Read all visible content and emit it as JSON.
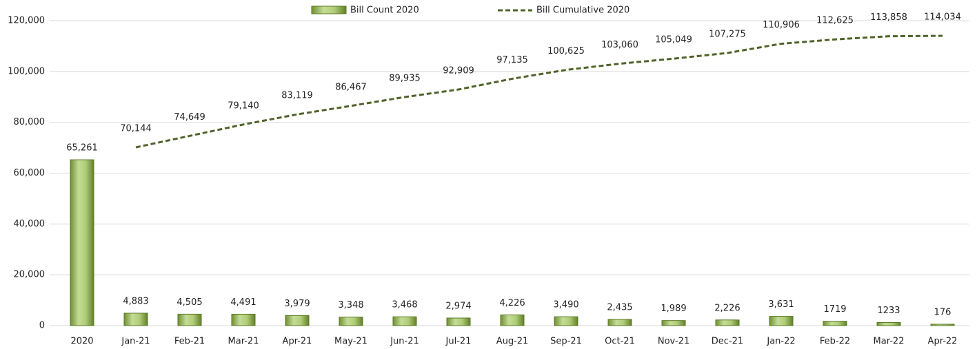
{
  "chart_data": {
    "type": "bar",
    "categories": [
      "2020",
      "Jan-21",
      "Feb-21",
      "Mar-21",
      "Apr-21",
      "May-21",
      "Jun-21",
      "Jul-21",
      "Aug-21",
      "Sep-21",
      "Oct-21",
      "Nov-21",
      "Dec-21",
      "Jan-22",
      "Feb-22",
      "Mar-22",
      "Apr-22"
    ],
    "series": [
      {
        "name": "Bill Count 2020",
        "type": "bar",
        "color": "#9bbb59",
        "values": [
          65261,
          4883,
          4505,
          4491,
          3979,
          3348,
          3468,
          2974,
          4226,
          3490,
          2435,
          1989,
          2226,
          3631,
          1719,
          1233,
          176
        ],
        "value_labels": [
          "65,261",
          "4,883",
          "4,505",
          "4,491",
          "3,979",
          "3,348",
          "3,468",
          "2,974",
          "4,226",
          "3,490",
          "2,435",
          "1,989",
          "2,226",
          "3,631",
          "1719",
          "1233",
          "176"
        ]
      },
      {
        "name": "Bill Cumulative 2020",
        "type": "line",
        "color": "#4f6228",
        "values": [
          null,
          70144,
          74649,
          79140,
          83119,
          86467,
          89935,
          92909,
          97135,
          100625,
          103060,
          105049,
          107275,
          110906,
          112625,
          113858,
          114034
        ],
        "value_labels": [
          null,
          "70,144",
          "74,649",
          "79,140",
          "83,119",
          "86,467",
          "89,935",
          "92,909",
          "97,135",
          "100,625",
          "103,060",
          "105,049",
          "107,275",
          "110,906",
          "112,625",
          "113,858",
          "114,034"
        ]
      }
    ],
    "ylim": [
      0,
      120000
    ],
    "yticks": [
      0,
      {
        "value": 20000,
        "label": "20,000"
      },
      {
        "value": 40000,
        "label": "40,000"
      },
      {
        "value": 60000,
        "label": "60,000"
      },
      {
        "value": 80000,
        "label": "80,000"
      },
      {
        "value": 100000,
        "label": "100,000"
      },
      {
        "value": 120000,
        "label": "120,000"
      }
    ],
    "grid": true,
    "legend": "top"
  }
}
